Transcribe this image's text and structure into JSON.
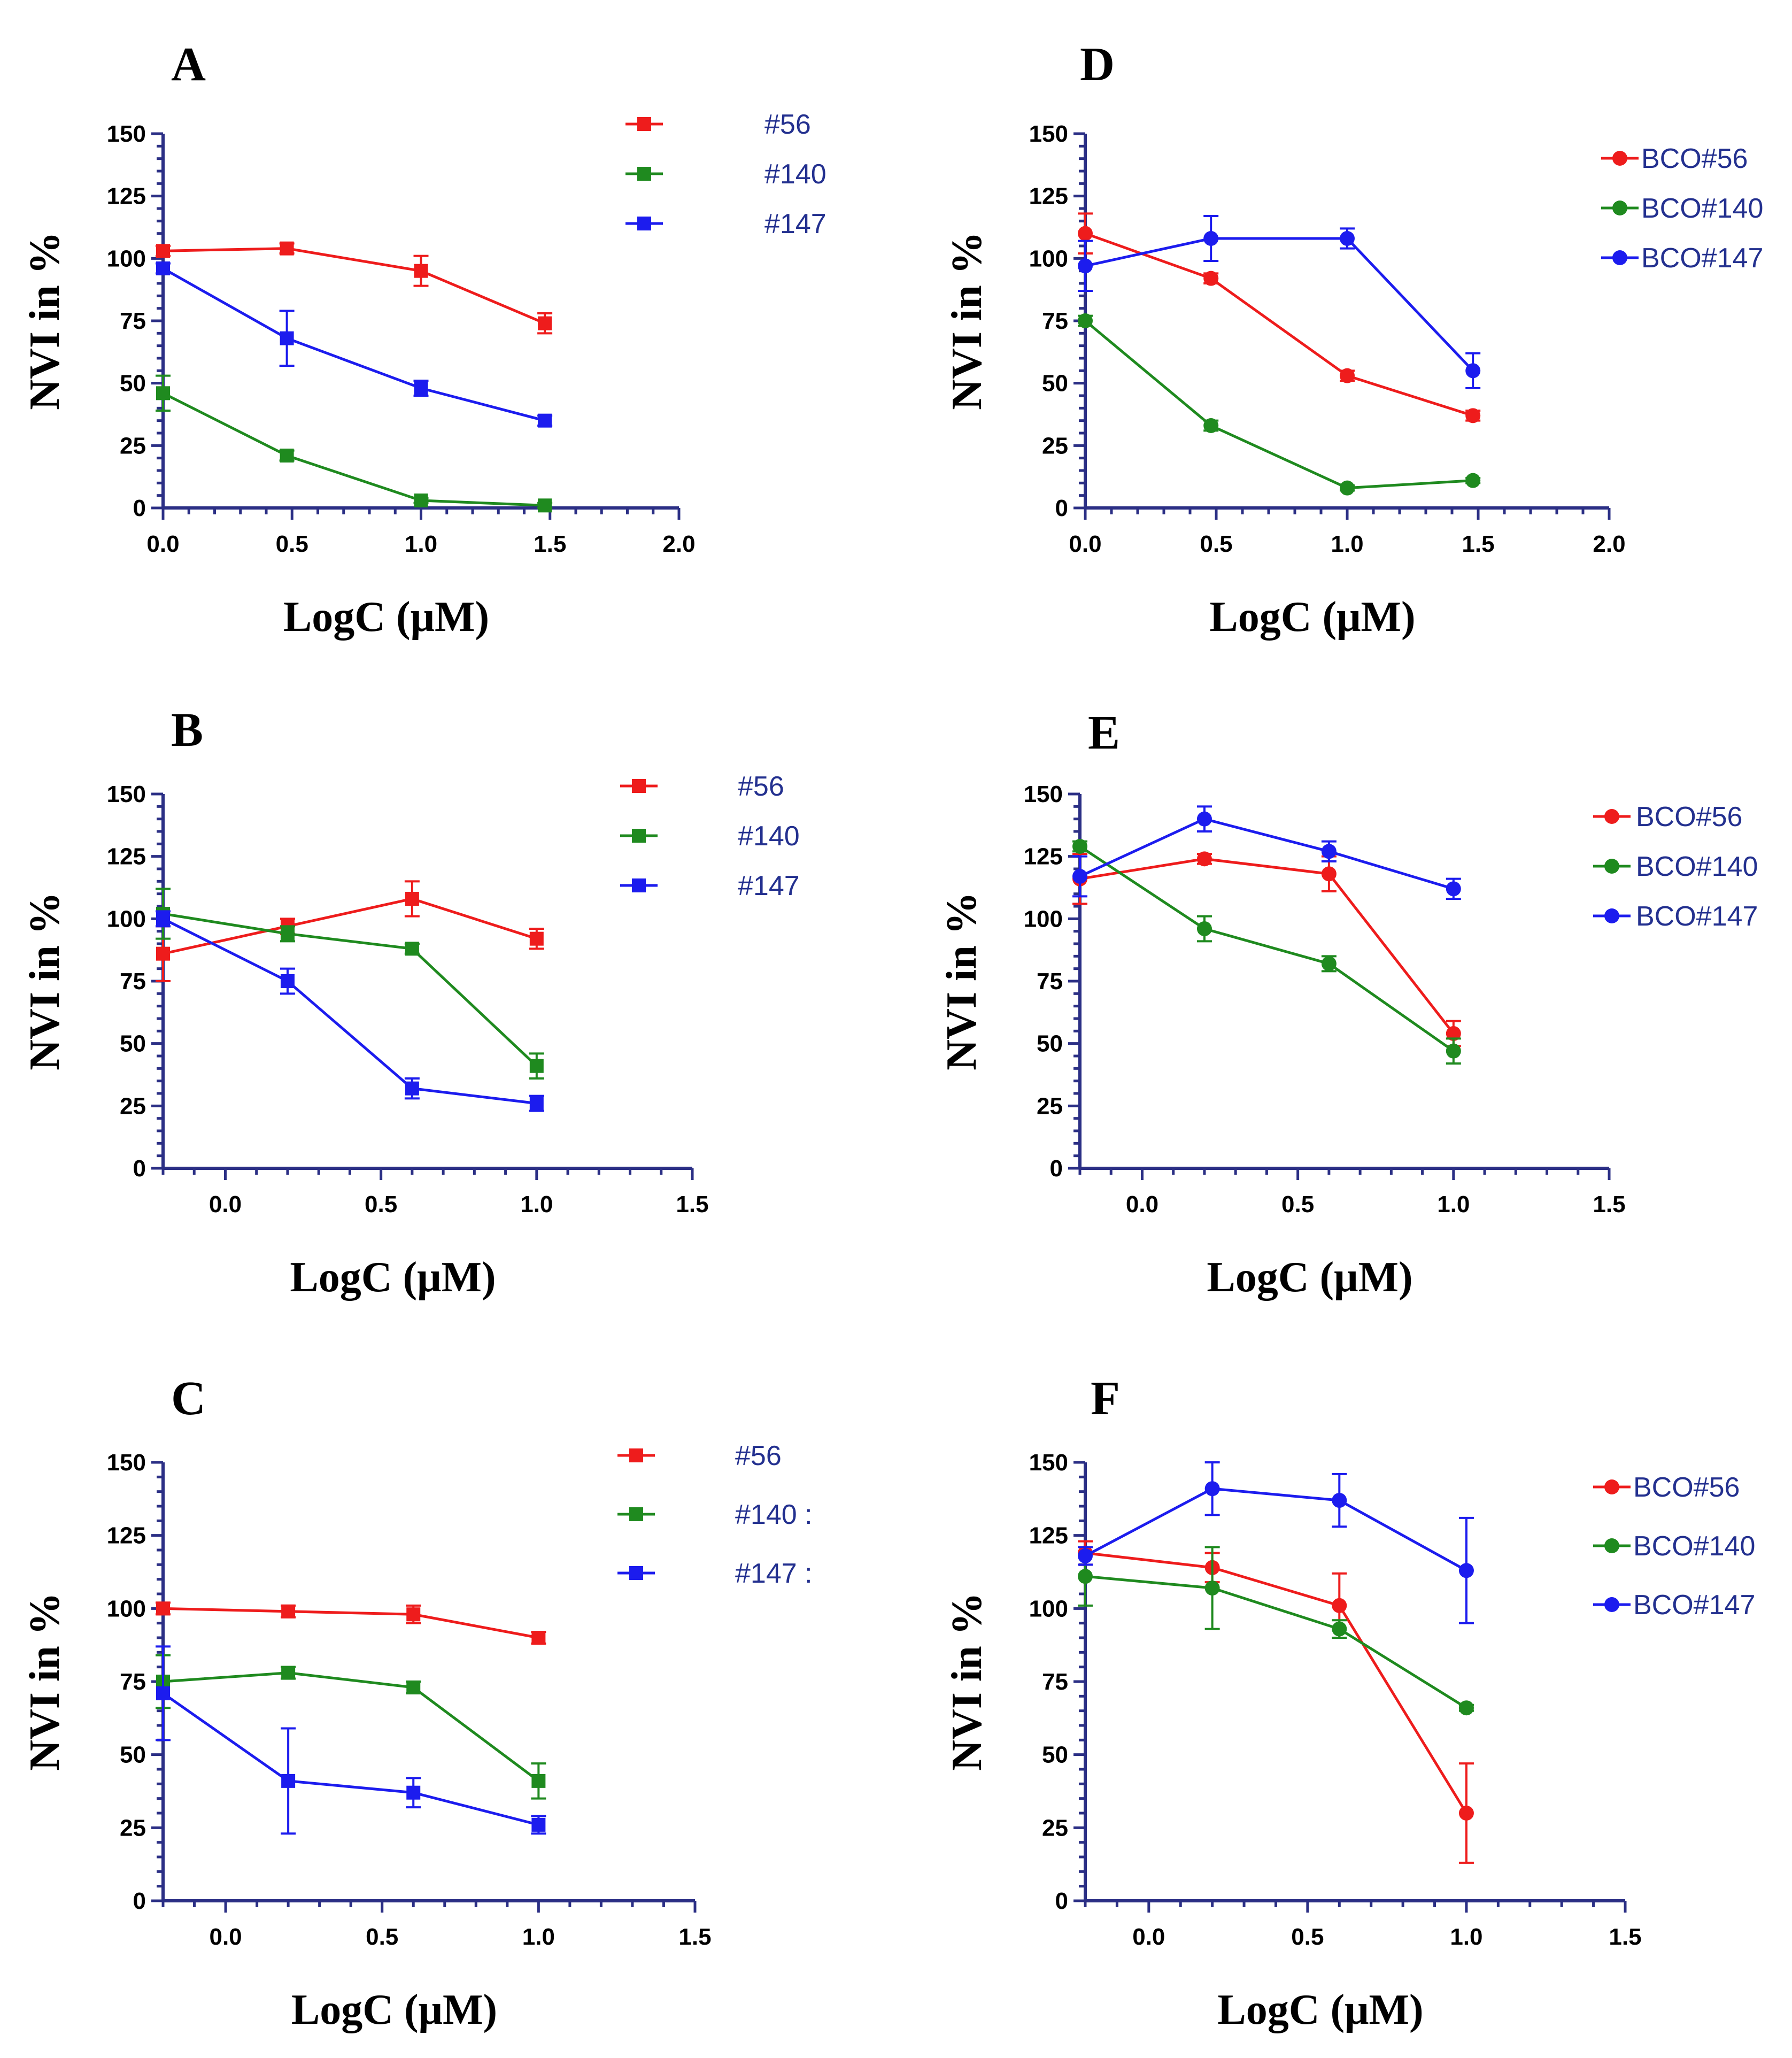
{
  "colors": {
    "axis": "#2b2f85",
    "legend_text": "#23308f",
    "red": "#ee1c1c",
    "green": "#1f8a1f",
    "blue": "#1c1cee"
  },
  "chart_data": [
    {
      "panel": "A",
      "type": "line",
      "marker": "square",
      "xlabel": "LogC (μM)",
      "ylabel": "NVI in %",
      "xlim": [
        0,
        2.0
      ],
      "ylim": [
        0,
        150
      ],
      "xticks": [
        "0.0",
        "0.5",
        "1.0",
        "1.5",
        "2.0"
      ],
      "yticks": [
        "0",
        "25",
        "50",
        "75",
        "100",
        "125",
        "150"
      ],
      "series": [
        {
          "name": "#56",
          "color": "red",
          "x": [
            0,
            0.48,
            1.0,
            1.48
          ],
          "values": [
            103,
            104,
            95,
            74
          ],
          "errors": [
            2,
            2,
            6,
            4
          ]
        },
        {
          "name": "#140",
          "color": "green",
          "x": [
            0,
            0.48,
            1.0,
            1.48
          ],
          "values": [
            46,
            21,
            3,
            1
          ],
          "errors": [
            7,
            2,
            1,
            1
          ]
        },
        {
          "name": "#147",
          "color": "blue",
          "x": [
            0,
            0.48,
            1.0,
            1.48
          ],
          "values": [
            96,
            68,
            48,
            35
          ],
          "errors": [
            2,
            11,
            3,
            2
          ]
        }
      ]
    },
    {
      "panel": "B",
      "type": "line",
      "marker": "square",
      "xlabel": "LogC (μM)",
      "ylabel": "NVI in %",
      "xlim": [
        -0.2,
        1.5
      ],
      "ylim": [
        0,
        150
      ],
      "xticks": [
        "0.0",
        "0.5",
        "1.0",
        "1.5"
      ],
      "yticks": [
        "0",
        "25",
        "50",
        "75",
        "100",
        "125",
        "150"
      ],
      "series": [
        {
          "name": "#56",
          "color": "red",
          "x": [
            -0.2,
            0.2,
            0.6,
            1.0
          ],
          "values": [
            86,
            97,
            108,
            92
          ],
          "errors": [
            11,
            3,
            7,
            4
          ]
        },
        {
          "name": "#140",
          "color": "green",
          "x": [
            -0.2,
            0.2,
            0.6,
            1.0
          ],
          "values": [
            102,
            94,
            88,
            41
          ],
          "errors": [
            10,
            3,
            2,
            5
          ]
        },
        {
          "name": "#147",
          "color": "blue",
          "x": [
            -0.2,
            0.2,
            0.6,
            1.0
          ],
          "values": [
            100,
            75,
            32,
            26
          ],
          "errors": [
            3,
            5,
            4,
            3
          ]
        }
      ]
    },
    {
      "panel": "C",
      "type": "line",
      "marker": "square",
      "xlabel": "LogC (μM)",
      "ylabel": "NVI in %",
      "xlim": [
        -0.2,
        1.5
      ],
      "ylim": [
        0,
        150
      ],
      "xticks": [
        "0.0",
        "0.5",
        "1.0",
        "1.5"
      ],
      "yticks": [
        "0",
        "25",
        "50",
        "75",
        "100",
        "125",
        "150"
      ],
      "series": [
        {
          "name": "#56",
          "color": "red",
          "x": [
            -0.2,
            0.2,
            0.6,
            1.0
          ],
          "values": [
            100,
            99,
            98,
            90
          ],
          "errors": [
            2,
            2,
            3,
            2
          ]
        },
        {
          "name": "#140 :",
          "color": "green",
          "x": [
            -0.2,
            0.2,
            0.6,
            1.0
          ],
          "values": [
            75,
            78,
            73,
            41
          ],
          "errors": [
            9,
            2,
            2,
            6
          ]
        },
        {
          "name": "#147 :",
          "color": "blue",
          "x": [
            -0.2,
            0.2,
            0.6,
            1.0
          ],
          "values": [
            71,
            41,
            37,
            26
          ],
          "errors": [
            16,
            18,
            5,
            3
          ]
        }
      ]
    },
    {
      "panel": "D",
      "type": "line",
      "marker": "circle",
      "xlabel": "LogC (μM)",
      "ylabel": "NVI in %",
      "xlim": [
        0,
        2.0
      ],
      "ylim": [
        0,
        150
      ],
      "xticks": [
        "0.0",
        "0.5",
        "1.0",
        "1.5",
        "2.0"
      ],
      "yticks": [
        "0",
        "25",
        "50",
        "75",
        "100",
        "125",
        "150"
      ],
      "series": [
        {
          "name": "BCO#56",
          "color": "red",
          "x": [
            0,
            0.48,
            1.0,
            1.48
          ],
          "values": [
            110,
            92,
            53,
            37
          ],
          "errors": [
            8,
            2,
            2,
            2
          ]
        },
        {
          "name": "BCO#140",
          "color": "green",
          "x": [
            0,
            0.48,
            1.0,
            1.48
          ],
          "values": [
            75,
            33,
            8,
            11
          ],
          "errors": [
            2,
            2,
            1,
            1
          ]
        },
        {
          "name": "BCO#147",
          "color": "blue",
          "x": [
            0,
            0.48,
            1.0,
            1.48
          ],
          "values": [
            97,
            108,
            108,
            55
          ],
          "errors": [
            10,
            9,
            4,
            7
          ]
        }
      ]
    },
    {
      "panel": "E",
      "type": "line",
      "marker": "circle",
      "xlabel": "LogC (μM)",
      "ylabel": "NVI in %",
      "xlim": [
        -0.2,
        1.5
      ],
      "ylim": [
        0,
        150
      ],
      "xticks": [
        "0.0",
        "0.5",
        "1.0",
        "1.5"
      ],
      "yticks": [
        "0",
        "25",
        "50",
        "75",
        "100",
        "125",
        "150"
      ],
      "series": [
        {
          "name": "BCO#56",
          "color": "red",
          "x": [
            -0.2,
            0.2,
            0.6,
            1.0
          ],
          "values": [
            116,
            124,
            118,
            54
          ],
          "errors": [
            10,
            2,
            7,
            5
          ]
        },
        {
          "name": "BCO#140",
          "color": "green",
          "x": [
            -0.2,
            0.2,
            0.6,
            1.0
          ],
          "values": [
            129,
            96,
            82,
            47
          ],
          "errors": [
            2,
            5,
            3,
            5
          ]
        },
        {
          "name": "BCO#147",
          "color": "blue",
          "x": [
            -0.2,
            0.2,
            0.6,
            1.0
          ],
          "values": [
            117,
            140,
            127,
            112
          ],
          "errors": [
            8,
            5,
            4,
            4
          ]
        }
      ]
    },
    {
      "panel": "F",
      "type": "line",
      "marker": "circle",
      "xlabel": "LogC (μM)",
      "ylabel": "NVI in %",
      "xlim": [
        -0.2,
        1.5
      ],
      "ylim": [
        0,
        150
      ],
      "xticks": [
        "0.0",
        "0.5",
        "1.0",
        "1.5"
      ],
      "yticks": [
        "0",
        "25",
        "50",
        "75",
        "100",
        "125",
        "150"
      ],
      "series": [
        {
          "name": "BCO#56",
          "color": "red",
          "x": [
            -0.2,
            0.2,
            0.6,
            1.0
          ],
          "values": [
            119,
            114,
            101,
            30
          ],
          "errors": [
            4,
            5,
            11,
            17
          ]
        },
        {
          "name": "BCO#140",
          "color": "green",
          "x": [
            -0.2,
            0.2,
            0.6,
            1.0
          ],
          "values": [
            111,
            107,
            93,
            66
          ],
          "errors": [
            10,
            14,
            3,
            1
          ]
        },
        {
          "name": "BCO#147",
          "color": "blue",
          "x": [
            -0.2,
            0.2,
            0.6,
            1.0
          ],
          "values": [
            118,
            141,
            137,
            113
          ],
          "errors": [
            3,
            9,
            9,
            18
          ]
        }
      ]
    }
  ]
}
